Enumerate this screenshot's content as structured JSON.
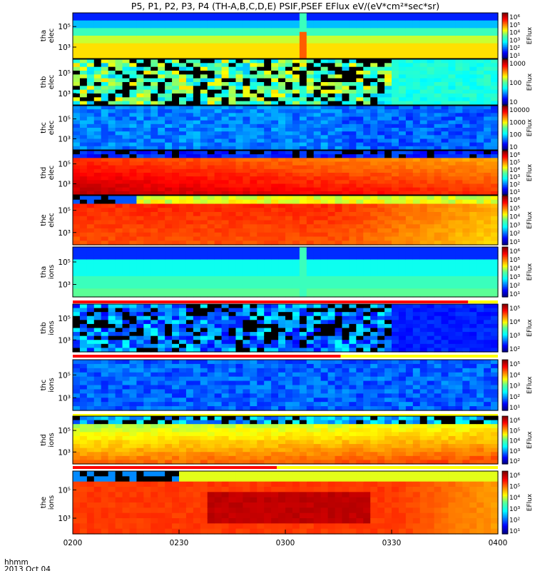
{
  "title": "P5, P1, P2, P3, P4 (TH-A,B,C,D,E) PSIF,PSEF EFlux eV/(eV*cm²*sec*sr)",
  "xaxis": {
    "ticks": [
      "0200",
      "0230",
      "0300",
      "0330",
      "0400"
    ],
    "caption_line1": "hhmm",
    "caption_line2": "2013 Oct 04"
  },
  "chart_data": {
    "type": "heatmap",
    "title": "P5, P1, P2, P3, P4 (TH-A,B,C,D,E) PSIF,PSEF EFlux eV/(eV*cm²*sec*sr)",
    "x": [
      "0200",
      "0230",
      "0300",
      "0330",
      "0400"
    ],
    "xlim": [
      "0200",
      "0400"
    ],
    "xlabel": "hhmm",
    "scale": "log",
    "panels": [
      {
        "ylabel": [
          "tha",
          "elec"
        ],
        "yticks": [
          "10⁵",
          "10³"
        ],
        "cbar_label": "EFlux",
        "cbar_ticks": [
          "10⁶",
          "10⁵",
          "10⁴",
          "10³",
          "10²",
          "10¹"
        ],
        "status_bar": "none"
      },
      {
        "ylabel": [
          "thb",
          "elec"
        ],
        "yticks": [
          "10⁵",
          "10³"
        ],
        "cbar_label": "EFlux",
        "cbar_ticks": [
          "1000",
          "100",
          "10"
        ],
        "status_bar": "none"
      },
      {
        "ylabel": [
          "thc",
          "elec"
        ],
        "yticks": [
          "10⁵",
          "10³"
        ],
        "cbar_label": "EFlux",
        "cbar_ticks": [
          "10000",
          "1000",
          "100",
          "10"
        ],
        "status_bar": "none"
      },
      {
        "ylabel": [
          "thd",
          "elec"
        ],
        "yticks": [
          "10⁵",
          "10³"
        ],
        "cbar_label": "EFlux",
        "cbar_ticks": [
          "10⁶",
          "10⁵",
          "10⁴",
          "10³",
          "10²",
          "10¹"
        ],
        "status_bar": "none"
      },
      {
        "ylabel": [
          "the",
          "elec"
        ],
        "yticks": [
          "10⁵",
          "10³"
        ],
        "cbar_label": "EFlux",
        "cbar_ticks": [
          "10⁶",
          "10⁵",
          "10⁴",
          "10³",
          "10²",
          "10¹"
        ],
        "status_bar": "red"
      },
      {
        "ylabel": [
          "tha",
          "ions"
        ],
        "yticks": [
          "10⁵",
          "10³"
        ],
        "cbar_label": "EFlux",
        "cbar_ticks": [
          "10⁶",
          "10⁵",
          "10⁴",
          "10³",
          "10²",
          "10¹"
        ],
        "status_bar": "red-yellow"
      },
      {
        "ylabel": [
          "thb",
          "ions"
        ],
        "yticks": [
          "10⁵",
          "10³"
        ],
        "cbar_label": "EFlux",
        "cbar_ticks": [
          "10⁵",
          "10⁴",
          "10³",
          "10²"
        ],
        "status_bar": "red-yellow"
      },
      {
        "ylabel": [
          "thc",
          "ions"
        ],
        "yticks": [
          "10⁵",
          "10³"
        ],
        "cbar_label": "EFlux",
        "cbar_ticks": [
          "10⁵",
          "10⁴",
          "10³",
          "10²",
          "10¹"
        ],
        "status_bar": "yellow"
      },
      {
        "ylabel": [
          "thd",
          "ions"
        ],
        "yticks": [
          "10⁵",
          "10³"
        ],
        "cbar_label": "EFlux",
        "cbar_ticks": [
          "10⁶",
          "10⁵",
          "10⁴",
          "10³",
          "10²"
        ],
        "status_bar": "red-yellow"
      },
      {
        "ylabel": [
          "the",
          "ions"
        ],
        "yticks": [
          "10⁵",
          "10³"
        ],
        "cbar_label": "EFlux",
        "cbar_ticks": [
          "10⁶",
          "10⁵",
          "10⁴",
          "10³",
          "10²",
          "10¹"
        ],
        "status_bar": "none"
      }
    ]
  }
}
